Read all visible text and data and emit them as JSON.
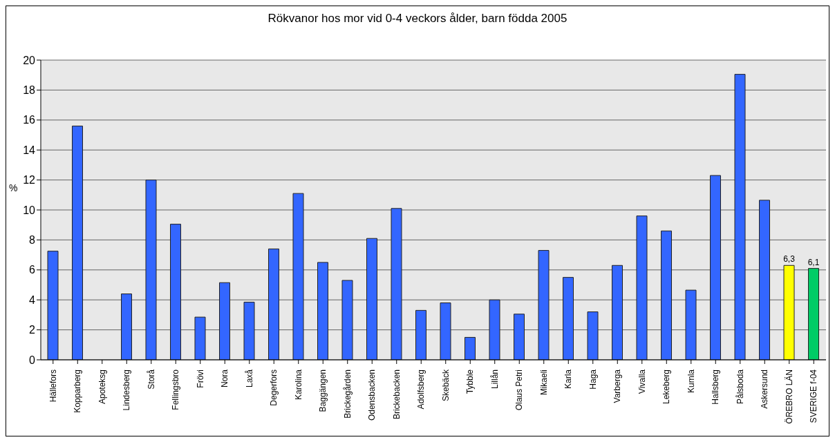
{
  "chart_data": {
    "type": "bar",
    "title": "Rökvanor hos mor vid 0-4 veckors ålder, barn födda 2005",
    "ylabel": "%",
    "categories": [
      "Hällefors",
      "Kopparberg",
      "Apoteksg",
      "Lindesberg",
      "Storå",
      "Fellingsbro",
      "Frövi",
      "Nora",
      "Laxå",
      "Degerfors",
      "Karolina",
      "Baggängen",
      "Brickegården",
      "Odensbacken",
      "Brickebacken",
      "Adolfsberg",
      "Skebäck",
      "Tybble",
      "Lillån",
      "Olaus Petri",
      "Mikaeli",
      "Karla",
      "Haga",
      "Varberga",
      "Vivalla",
      "Lekeberg",
      "Kumla",
      "Hallsberg",
      "Pålsboda",
      "Askersund",
      "ÖREBRO LÄN",
      "SVERIGE f-04"
    ],
    "values": [
      7.25,
      15.6,
      null,
      4.4,
      12.0,
      9.05,
      2.85,
      5.15,
      3.85,
      7.4,
      11.1,
      6.5,
      5.3,
      8.1,
      10.1,
      3.3,
      3.8,
      1.5,
      4.0,
      3.05,
      7.3,
      5.5,
      3.2,
      6.3,
      9.6,
      8.6,
      4.65,
      12.3,
      19.05,
      10.65,
      6.3,
      6.1
    ],
    "colors": [
      "#3366ff",
      "#3366ff",
      "#3366ff",
      "#3366ff",
      "#3366ff",
      "#3366ff",
      "#3366ff",
      "#3366ff",
      "#3366ff",
      "#3366ff",
      "#3366ff",
      "#3366ff",
      "#3366ff",
      "#3366ff",
      "#3366ff",
      "#3366ff",
      "#3366ff",
      "#3366ff",
      "#3366ff",
      "#3366ff",
      "#3366ff",
      "#3366ff",
      "#3366ff",
      "#3366ff",
      "#3366ff",
      "#3366ff",
      "#3366ff",
      "#3366ff",
      "#3366ff",
      "#3366ff",
      "#ffff00",
      "#00cc66"
    ],
    "value_labels": [
      null,
      null,
      null,
      null,
      null,
      null,
      null,
      null,
      null,
      null,
      null,
      null,
      null,
      null,
      null,
      null,
      null,
      null,
      null,
      null,
      null,
      null,
      null,
      null,
      null,
      null,
      null,
      null,
      null,
      null,
      "6,3",
      "6,1"
    ],
    "ylim": [
      0,
      20
    ],
    "yticks": [
      0,
      2,
      4,
      6,
      8,
      10,
      12,
      14,
      16,
      18,
      20
    ],
    "grid": "y"
  }
}
